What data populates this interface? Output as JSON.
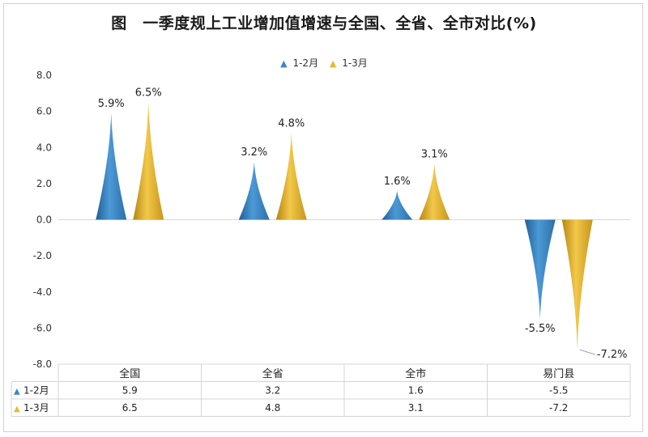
{
  "title": "图　一季度规上工业增加值增速与全国、全省、全市对比(%)",
  "chart_data": {
    "type": "bar",
    "bar_shape": "cone",
    "categories": [
      "全国",
      "全省",
      "全市",
      "易门县"
    ],
    "series": [
      {
        "name": "1-2月",
        "values": [
          5.9,
          3.2,
          1.6,
          -5.5
        ],
        "color": "#3a86c8"
      },
      {
        "name": "1-3月",
        "values": [
          6.5,
          4.8,
          3.1,
          -7.2
        ],
        "color": "#e8b830"
      }
    ],
    "ylim": [
      -8.0,
      8.0
    ],
    "yticks": [
      "8.0",
      "6.0",
      "4.0",
      "2.0",
      "0.0",
      "-2.0",
      "-4.0",
      "-6.0",
      "-8.0"
    ],
    "data_labels": [
      [
        "5.9%",
        "3.2%",
        "1.6%",
        "-5.5%"
      ],
      [
        "6.5%",
        "4.8%",
        "3.1%",
        "-7.2%"
      ]
    ],
    "table": {
      "rows": [
        {
          "label": "1-2月",
          "values": [
            "5.9",
            "3.2",
            "1.6",
            "-5.5"
          ]
        },
        {
          "label": "1-3月",
          "values": [
            "6.5",
            "4.8",
            "3.1",
            "-7.2"
          ]
        }
      ]
    },
    "legend_position": "top-center",
    "grid": false
  }
}
